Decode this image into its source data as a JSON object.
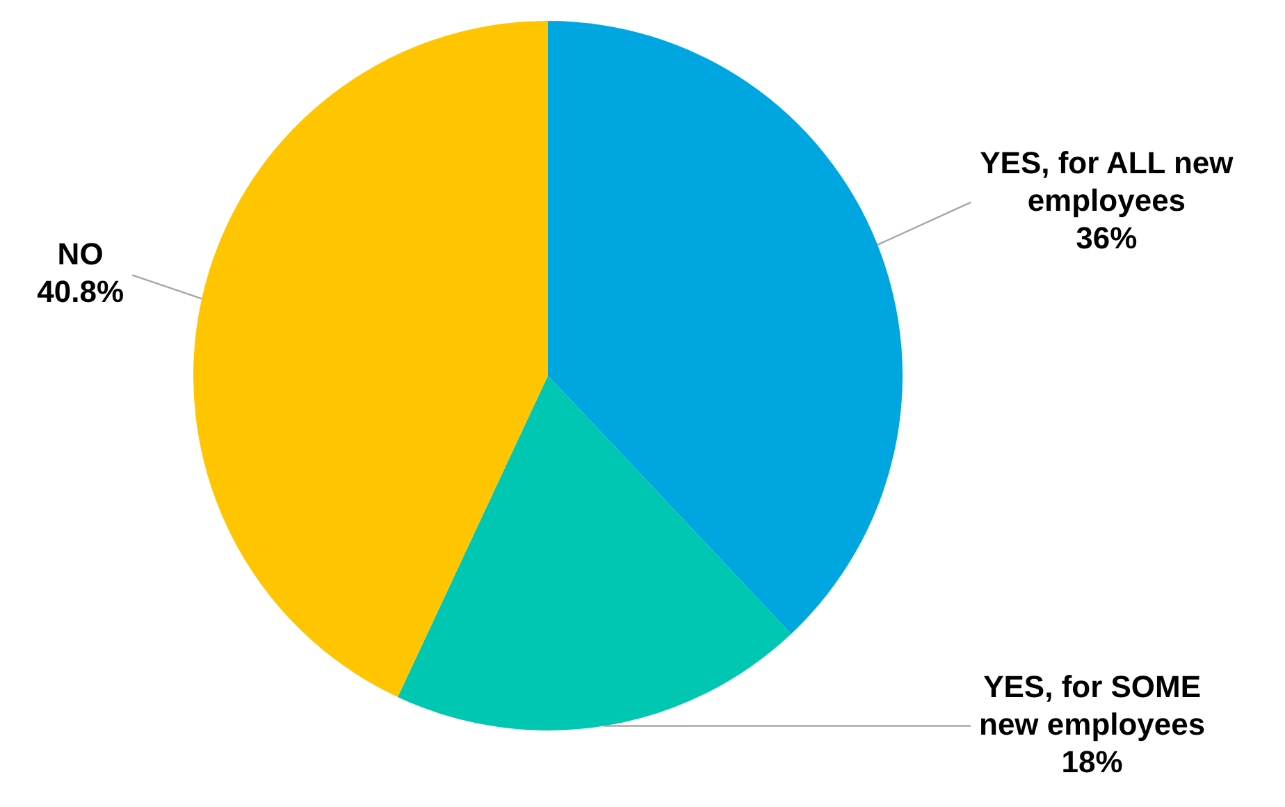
{
  "chart_data": {
    "type": "pie",
    "categories": [
      "YES, for ALL new employees",
      "YES, for SOME new employees",
      "NO"
    ],
    "values": [
      36,
      18,
      40.8
    ],
    "colors": [
      "#00a6df",
      "#00c7b1",
      "#ffc600"
    ],
    "value_labels": [
      "36%",
      "18%",
      "40.8%"
    ],
    "legend": false
  }
}
